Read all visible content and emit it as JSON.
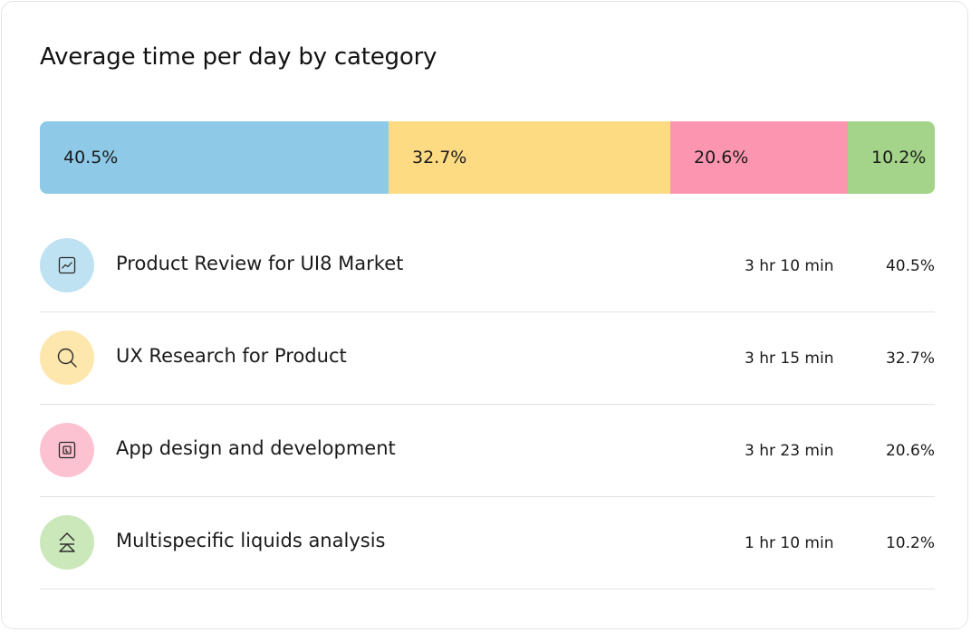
{
  "chart_data": {
    "type": "bar",
    "title": "Average time per day by category",
    "orientation": "horizontal-stacked",
    "xlabel": "",
    "ylabel": "",
    "series": [
      {
        "name": "Product Review for UI8 Market",
        "value": 40.5,
        "label": "40.5%",
        "time": "3 hr 10 min",
        "color": "#8ecae8",
        "icon_bg": "#bfe2f2",
        "icon": "chart-line-icon"
      },
      {
        "name": "UX Research for Product",
        "value": 32.7,
        "label": "32.7%",
        "time": "3 hr 15 min",
        "color": "#fddb83",
        "icon_bg": "#fde7ad",
        "icon": "search-icon"
      },
      {
        "name": "App design and development",
        "value": 20.6,
        "label": "20.6%",
        "time": "3 hr 23 min",
        "color": "#fc96b0",
        "icon_bg": "#fdc2d1",
        "icon": "design-frame-icon"
      },
      {
        "name": "Multispecific liquids analysis",
        "value": 10.2,
        "label": "10.2%",
        "time": "1 hr 10 min",
        "color": "#a3d489",
        "icon_bg": "#cbe8bb",
        "icon": "layers-triangle-icon"
      }
    ]
  }
}
